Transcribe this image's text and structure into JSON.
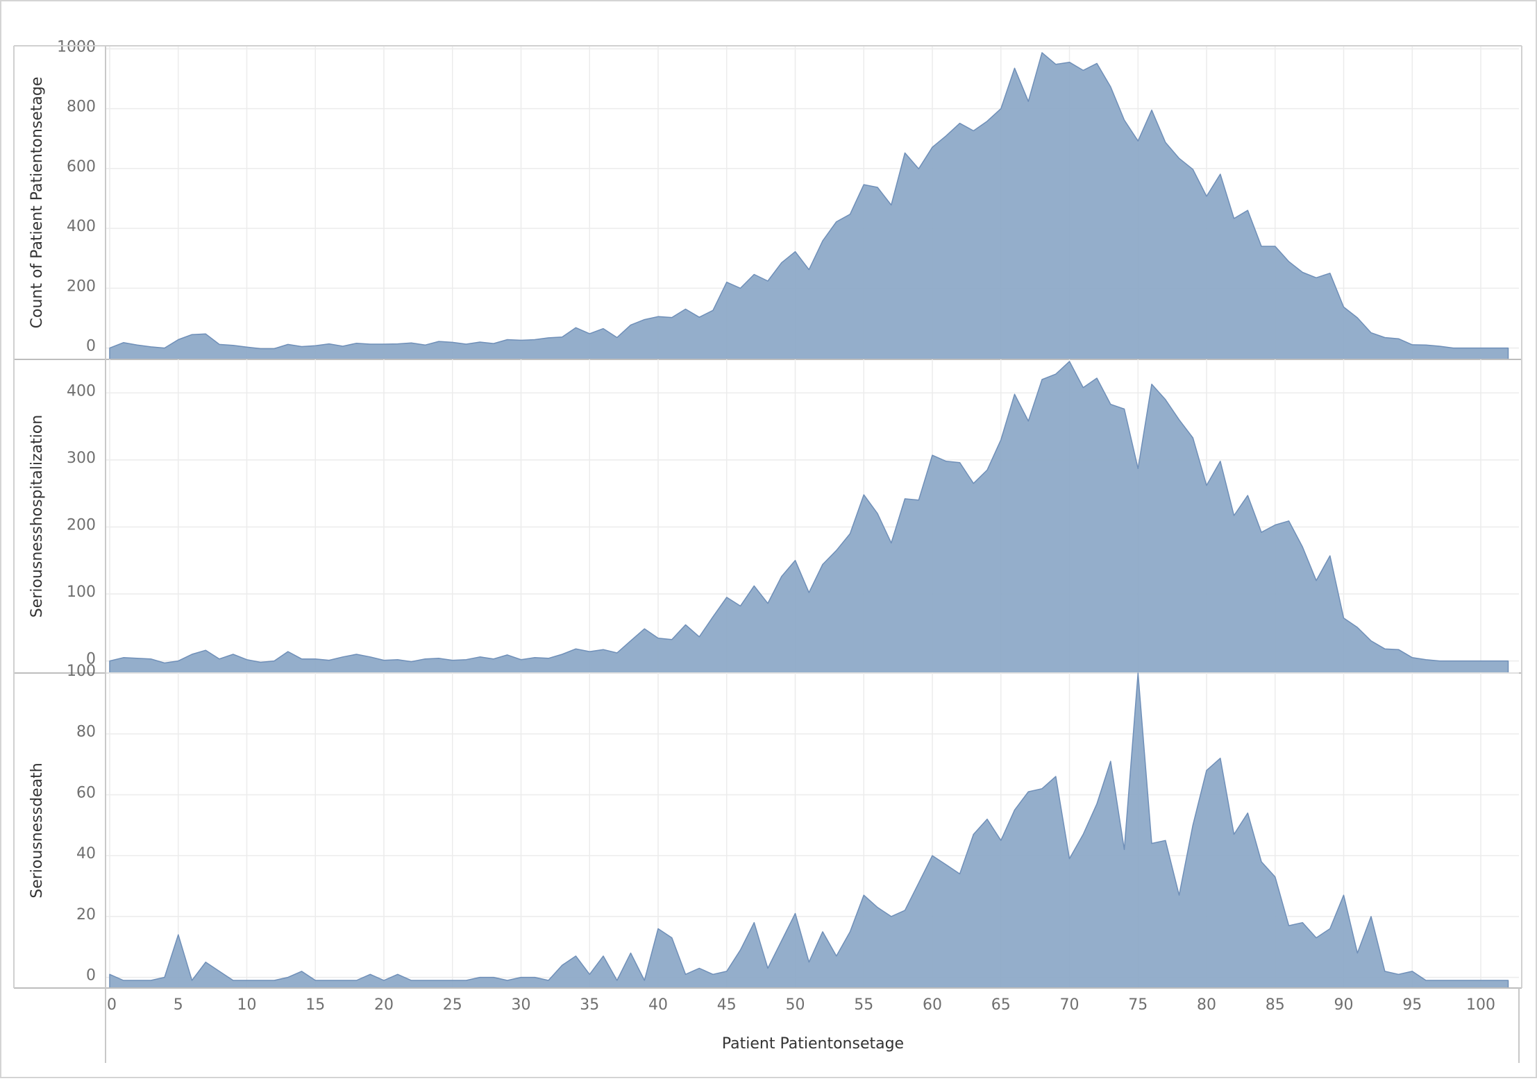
{
  "chart_data": {
    "type": "area",
    "xlabel": "Patient Patientonsetage",
    "x_ticks": [
      0,
      5,
      10,
      15,
      20,
      25,
      30,
      35,
      40,
      45,
      50,
      55,
      60,
      65,
      70,
      75,
      80,
      85,
      90,
      95,
      100
    ],
    "x": [
      0,
      1,
      2,
      3,
      4,
      5,
      6,
      7,
      8,
      9,
      10,
      11,
      12,
      13,
      14,
      15,
      16,
      17,
      18,
      19,
      20,
      21,
      22,
      23,
      24,
      25,
      26,
      27,
      28,
      29,
      30,
      31,
      32,
      33,
      34,
      35,
      36,
      37,
      38,
      39,
      40,
      41,
      42,
      43,
      44,
      45,
      46,
      47,
      48,
      49,
      50,
      51,
      52,
      53,
      54,
      55,
      56,
      57,
      58,
      59,
      60,
      61,
      62,
      63,
      64,
      65,
      66,
      67,
      68,
      69,
      70,
      71,
      72,
      73,
      74,
      75,
      76,
      77,
      78,
      79,
      80,
      81,
      82,
      83,
      84,
      85,
      86,
      87,
      88,
      89,
      90,
      91,
      92,
      93,
      94,
      95,
      96,
      97,
      98,
      99,
      100,
      101,
      102
    ],
    "grid": true,
    "color": "#8eaac8",
    "line_color": "#6f8fb8",
    "panels": [
      {
        "ylabel": "Count of Patient Patientonsetage",
        "y_ticks": [
          0,
          200,
          400,
          600,
          800,
          1000
        ],
        "ylim": [
          -38,
          1010
        ],
        "values": [
          0,
          18,
          10,
          4,
          0,
          28,
          45,
          47,
          12,
          9,
          3,
          -2,
          -2,
          12,
          5,
          8,
          14,
          6,
          16,
          13,
          13,
          14,
          17,
          10,
          22,
          19,
          13,
          20,
          15,
          28,
          26,
          28,
          34,
          37,
          68,
          48,
          65,
          35,
          77,
          95,
          105,
          102,
          130,
          103,
          126,
          220,
          200,
          246,
          224,
          285,
          322,
          262,
          358,
          422,
          447,
          546,
          537,
          478,
          652,
          599,
          671,
          709,
          751,
          726,
          758,
          800,
          935,
          824,
          987,
          948,
          955,
          928,
          951,
          873,
          762,
          692,
          795,
          687,
          634,
          597,
          507,
          581,
          433,
          460,
          340,
          340,
          289,
          253,
          235,
          250,
          137,
          101,
          51,
          35,
          31,
          11,
          10,
          6,
          0,
          0,
          0,
          0,
          0
        ]
      },
      {
        "ylabel": "Seriousnesshospitalization",
        "y_ticks": [
          0,
          100,
          200,
          300,
          400
        ],
        "ylim": [
          -18,
          450
        ],
        "values": [
          0,
          5,
          4,
          3,
          -3,
          0,
          10,
          16,
          3,
          10,
          2,
          -2,
          0,
          14,
          3,
          3,
          1,
          6,
          10,
          6,
          1,
          2,
          -1,
          3,
          4,
          1,
          2,
          6,
          3,
          9,
          2,
          5,
          4,
          10,
          18,
          14,
          17,
          12,
          30,
          48,
          34,
          32,
          54,
          36,
          66,
          95,
          82,
          112,
          86,
          126,
          150,
          102,
          144,
          165,
          190,
          248,
          220,
          176,
          242,
          240,
          307,
          298,
          296,
          265,
          285,
          330,
          398,
          358,
          420,
          428,
          447,
          408,
          422,
          383,
          376,
          287,
          413,
          390,
          360,
          333,
          262,
          298,
          217,
          247,
          192,
          203,
          209,
          170,
          120,
          157,
          64,
          50,
          30,
          18,
          17,
          5,
          2,
          0,
          0,
          0,
          0,
          0,
          0
        ]
      },
      {
        "ylabel": "Seriousnessdeath",
        "y_ticks": [
          0,
          20,
          40,
          60,
          80,
          100
        ],
        "ylim": [
          -3.5,
          100
        ],
        "values": [
          1,
          -1,
          -1,
          -1,
          0,
          14,
          -1,
          5,
          2,
          -1,
          -1,
          -1,
          -1,
          0,
          2,
          -1,
          -1,
          -1,
          -1,
          1,
          -1,
          1,
          -1,
          -1,
          -1,
          -1,
          -1,
          0,
          0,
          -1,
          0,
          0,
          -1,
          4,
          7,
          1,
          7,
          -1,
          8,
          -1,
          16,
          13,
          1,
          3,
          1,
          2,
          9,
          18,
          3,
          12,
          21,
          5,
          15,
          7,
          15,
          27,
          23,
          20,
          22,
          31,
          40,
          37,
          34,
          47,
          52,
          45,
          55,
          61,
          62,
          66,
          39,
          47,
          57,
          71,
          42,
          100,
          44,
          45,
          27,
          50,
          68,
          72,
          47,
          54,
          38,
          33,
          17,
          18,
          13,
          16,
          27,
          8,
          20,
          2,
          1,
          2,
          -1,
          -1,
          -1,
          -1,
          -1,
          -1,
          -1
        ]
      }
    ]
  }
}
